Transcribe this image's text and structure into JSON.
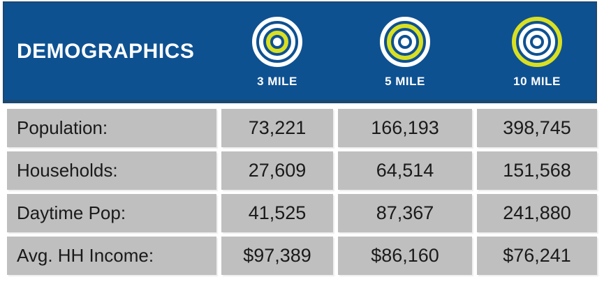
{
  "colors": {
    "header_blue": "#0E5191",
    "header_edge_dark": "#1B4870",
    "cell_gray": "#BFBFBF",
    "accent_yellow": "#D9E021",
    "text_dark": "#1A1A1A",
    "text_white": "#FFFFFF",
    "background": "#FFFFFF"
  },
  "header": {
    "title": "DEMOGRAPHICS",
    "columns": [
      {
        "label": "3 MILE",
        "icon": "bullseye-3mile-icon",
        "highlight_ring": "inner",
        "rings": [
          "#FFFFFF",
          "#FFFFFF",
          "#D9E021"
        ],
        "dot": "#FFFFFF"
      },
      {
        "label": "5 MILE",
        "icon": "bullseye-5mile-icon",
        "highlight_ring": "middle",
        "rings": [
          "#FFFFFF",
          "#D9E021",
          "#FFFFFF"
        ],
        "dot": "#FFFFFF"
      },
      {
        "label": "10 MILE",
        "icon": "bullseye-10mile-icon",
        "highlight_ring": "outer",
        "rings": [
          "#D9E021",
          "#FFFFFF",
          "#FFFFFF"
        ],
        "dot": "#FFFFFF"
      }
    ]
  },
  "table": {
    "rows": [
      {
        "label": "Population:",
        "values": [
          "73,221",
          "166,193",
          "398,745"
        ]
      },
      {
        "label": "Households:",
        "values": [
          "27,609",
          "64,514",
          "151,568"
        ]
      },
      {
        "label": "Daytime Pop:",
        "values": [
          "41,525",
          "87,367",
          "241,880"
        ]
      },
      {
        "label": "Avg. HH Income:",
        "values": [
          "$97,389",
          "$86,160",
          "$76,241"
        ]
      }
    ]
  },
  "chart_data": {
    "type": "table",
    "title": "DEMOGRAPHICS",
    "columns": [
      "",
      "3 MILE",
      "5 MILE",
      "10 MILE"
    ],
    "rows": [
      [
        "Population:",
        "73,221",
        "166,193",
        "398,745"
      ],
      [
        "Households:",
        "27,609",
        "64,514",
        "151,568"
      ],
      [
        "Daytime Pop:",
        "41,525",
        "87,367",
        "241,880"
      ],
      [
        "Avg. HH Income:",
        "$97,389",
        "$86,160",
        "$76,241"
      ]
    ]
  }
}
